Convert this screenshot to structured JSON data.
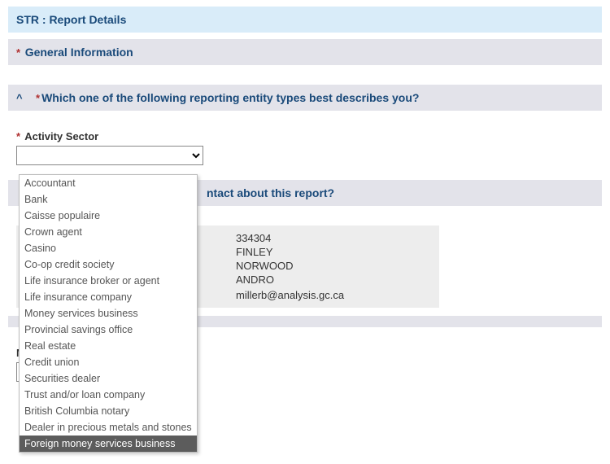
{
  "banner": {
    "title": "STR : Report Details"
  },
  "general": {
    "title": "General Information"
  },
  "question1": {
    "title": "Which one of the following reporting entity types best describes you?",
    "field_label": "Activity Sector",
    "options": [
      "Accountant",
      "Bank",
      "Caisse populaire",
      "Crown agent",
      "Casino",
      "Co-op credit society",
      "Life insurance broker or agent",
      "Life insurance company",
      "Money services business",
      "Provincial savings office",
      "Real estate",
      "Credit union",
      "Securities dealer",
      "Trust and/or loan company",
      "British Columbia notary",
      "Dealer in precious metals and stones",
      "Foreign money services business"
    ],
    "highlighted_index": 16
  },
  "question2": {
    "title_fragment": "ntact about this report?"
  },
  "contact": {
    "rows": [
      {
        "label": "",
        "value": "334304"
      },
      {
        "label": "",
        "value": "FINLEY"
      },
      {
        "label": "",
        "value": "NORWOOD"
      },
      {
        "label": "",
        "value": "ANDRO"
      },
      {
        "label": "",
        "value": ""
      },
      {
        "label": "",
        "value": "millerb@analysis.gc.ca"
      }
    ]
  },
  "ministerial": {
    "label": "Ministerial Directive"
  },
  "colors": {
    "banner_bg": "#d9ecf9",
    "section_bg": "#e3e3ea",
    "heading_text": "#1a4a7a",
    "required": "#b03030",
    "dropdown_highlight_bg": "#5c5c5c",
    "contact_panel_bg": "#ededed"
  }
}
